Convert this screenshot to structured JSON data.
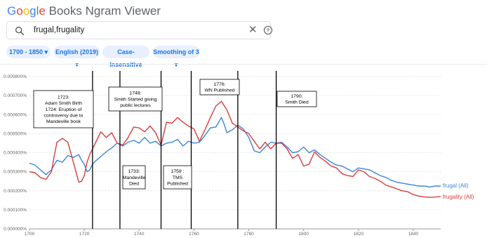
{
  "app": {
    "brand_google": "Google",
    "brand_rest": " Books Ngram Viewer",
    "brand_colors": [
      "#4285F4",
      "#EA4335",
      "#FBBC05",
      "#4285F4",
      "#34A853",
      "#EA4335"
    ]
  },
  "search": {
    "query": "frugal,frugality",
    "clear_icon": "close-icon",
    "help_icon": "help-circle-icon"
  },
  "filters": {
    "year_range": "1700 - 1850",
    "corpus": "English (2019)",
    "case": "Case-Insensitive",
    "smoothing": "Smoothing of 3",
    "accent": "#1a73e8",
    "chip_bg": "#e8f0fe"
  },
  "chart_data": {
    "type": "line",
    "xlim": [
      1700,
      1850
    ],
    "ylim": [
      0,
      8e-06
    ],
    "x_ticks": [
      "1700",
      "1720",
      "1740",
      "1760",
      "1780",
      "1800",
      "1820",
      "1840"
    ],
    "y_ticks": [
      "0.000000%",
      "0.000100%",
      "0.000200%",
      "0.000300%",
      "0.000400%",
      "0.000500%",
      "0.000600%",
      "0.000700%",
      "0.000800%"
    ],
    "grid": true,
    "legend_placement": "right",
    "series": [
      {
        "name": "frugal (All)",
        "color": "#3f84d6",
        "points": [
          [
            1700,
            3.45
          ],
          [
            1702,
            3.35
          ],
          [
            1704,
            3.1
          ],
          [
            1706,
            2.85
          ],
          [
            1708,
            3.1
          ],
          [
            1710,
            3.6
          ],
          [
            1712,
            3.5
          ],
          [
            1714,
            3.85
          ],
          [
            1716,
            3.75
          ],
          [
            1718,
            3.9
          ],
          [
            1719,
            3.6
          ],
          [
            1720,
            3.4
          ],
          [
            1721,
            3.0
          ],
          [
            1722,
            3.1
          ],
          [
            1723,
            3.4
          ],
          [
            1724,
            3.55
          ],
          [
            1726,
            3.8
          ],
          [
            1728,
            4.05
          ],
          [
            1730,
            4.25
          ],
          [
            1732,
            4.5
          ],
          [
            1734,
            4.35
          ],
          [
            1736,
            4.55
          ],
          [
            1738,
            4.65
          ],
          [
            1740,
            4.5
          ],
          [
            1742,
            4.8
          ],
          [
            1744,
            4.5
          ],
          [
            1746,
            4.6
          ],
          [
            1748,
            4.35
          ],
          [
            1750,
            4.5
          ],
          [
            1752,
            4.55
          ],
          [
            1754,
            4.7
          ],
          [
            1756,
            4.35
          ],
          [
            1758,
            4.6
          ],
          [
            1760,
            4.5
          ],
          [
            1762,
            4.55
          ],
          [
            1764,
            4.9
          ],
          [
            1766,
            5.3
          ],
          [
            1768,
            5.35
          ],
          [
            1770,
            5.85
          ],
          [
            1771,
            5.5
          ],
          [
            1772,
            5.05
          ],
          [
            1774,
            5.2
          ],
          [
            1776,
            5.45
          ],
          [
            1778,
            5.25
          ],
          [
            1780,
            4.8
          ],
          [
            1782,
            4.1
          ],
          [
            1784,
            4.0
          ],
          [
            1786,
            4.3
          ],
          [
            1788,
            4.55
          ],
          [
            1790,
            4.5
          ],
          [
            1792,
            4.55
          ],
          [
            1794,
            4.3
          ],
          [
            1796,
            4.0
          ],
          [
            1798,
            4.05
          ],
          [
            1800,
            4.3
          ],
          [
            1802,
            4.0
          ],
          [
            1804,
            4.15
          ],
          [
            1806,
            3.9
          ],
          [
            1808,
            3.7
          ],
          [
            1810,
            3.5
          ],
          [
            1812,
            3.35
          ],
          [
            1814,
            3.3
          ],
          [
            1816,
            3.15
          ],
          [
            1818,
            3.0
          ],
          [
            1820,
            3.2
          ],
          [
            1822,
            3.15
          ],
          [
            1824,
            3.1
          ],
          [
            1826,
            2.95
          ],
          [
            1828,
            2.8
          ],
          [
            1830,
            2.7
          ],
          [
            1832,
            2.55
          ],
          [
            1834,
            2.45
          ],
          [
            1836,
            2.4
          ],
          [
            1838,
            2.35
          ],
          [
            1840,
            2.3
          ],
          [
            1842,
            2.25
          ],
          [
            1844,
            2.25
          ],
          [
            1846,
            2.2
          ],
          [
            1848,
            2.25
          ],
          [
            1850,
            2.25
          ]
        ]
      },
      {
        "name": "frugality (All)",
        "color": "#db3b3b",
        "points": [
          [
            1700,
            3.0
          ],
          [
            1702,
            2.95
          ],
          [
            1704,
            2.7
          ],
          [
            1706,
            2.6
          ],
          [
            1708,
            3.0
          ],
          [
            1709,
            3.8
          ],
          [
            1710,
            4.55
          ],
          [
            1712,
            4.75
          ],
          [
            1714,
            4.55
          ],
          [
            1716,
            3.5
          ],
          [
            1718,
            2.45
          ],
          [
            1719,
            2.5
          ],
          [
            1720,
            2.8
          ],
          [
            1721,
            3.5
          ],
          [
            1722,
            3.9
          ],
          [
            1724,
            4.5
          ],
          [
            1726,
            5.1
          ],
          [
            1728,
            4.8
          ],
          [
            1730,
            5.05
          ],
          [
            1732,
            4.5
          ],
          [
            1734,
            4.4
          ],
          [
            1736,
            4.8
          ],
          [
            1738,
            5.35
          ],
          [
            1740,
            5.3
          ],
          [
            1742,
            5.1
          ],
          [
            1744,
            5.4
          ],
          [
            1746,
            5.05
          ],
          [
            1748,
            4.4
          ],
          [
            1750,
            5.6
          ],
          [
            1752,
            5.55
          ],
          [
            1754,
            5.85
          ],
          [
            1756,
            5.6
          ],
          [
            1758,
            5.4
          ],
          [
            1760,
            5.25
          ],
          [
            1762,
            4.6
          ],
          [
            1764,
            5.2
          ],
          [
            1766,
            5.85
          ],
          [
            1768,
            6.45
          ],
          [
            1770,
            6.7
          ],
          [
            1772,
            6.25
          ],
          [
            1774,
            5.55
          ],
          [
            1776,
            5.35
          ],
          [
            1778,
            5.15
          ],
          [
            1780,
            5.0
          ],
          [
            1782,
            4.6
          ],
          [
            1784,
            4.2
          ],
          [
            1786,
            4.55
          ],
          [
            1788,
            4.2
          ],
          [
            1790,
            4.5
          ],
          [
            1792,
            4.5
          ],
          [
            1794,
            4.2
          ],
          [
            1796,
            3.7
          ],
          [
            1798,
            3.9
          ],
          [
            1800,
            3.3
          ],
          [
            1802,
            3.4
          ],
          [
            1804,
            4.05
          ],
          [
            1806,
            3.75
          ],
          [
            1808,
            3.55
          ],
          [
            1810,
            3.3
          ],
          [
            1812,
            3.2
          ],
          [
            1814,
            2.9
          ],
          [
            1816,
            2.8
          ],
          [
            1818,
            2.75
          ],
          [
            1820,
            3.1
          ],
          [
            1822,
            3.0
          ],
          [
            1824,
            2.75
          ],
          [
            1826,
            2.65
          ],
          [
            1828,
            2.5
          ],
          [
            1830,
            2.3
          ],
          [
            1832,
            2.2
          ],
          [
            1834,
            2.1
          ],
          [
            1836,
            2.0
          ],
          [
            1838,
            1.95
          ],
          [
            1840,
            1.8
          ],
          [
            1842,
            1.72
          ],
          [
            1844,
            1.68
          ],
          [
            1846,
            1.65
          ],
          [
            1848,
            1.67
          ],
          [
            1850,
            1.7
          ]
        ]
      }
    ],
    "y_unit_multiplier": 1e-06,
    "event_lines": [
      1723,
      1733,
      1748,
      1759,
      1776,
      1790
    ],
    "annotations": [
      {
        "id": "ann-1723",
        "lines": [
          "1723:",
          "Adam Smith Birth",
          "1724: Eruption of",
          "controversy due to",
          "Mandeville book"
        ]
      },
      {
        "id": "ann-1748",
        "lines": [
          "1748:",
          "Smith Started giving",
          "public lectures"
        ]
      },
      {
        "id": "ann-1776",
        "lines": [
          "1776:",
          "WN Published"
        ]
      },
      {
        "id": "ann-1790",
        "lines": [
          "1790:",
          "Smith Died"
        ]
      },
      {
        "id": "ann-1733",
        "lines": [
          "1733:",
          "Mandeville",
          "Died"
        ]
      },
      {
        "id": "ann-1759",
        "lines": [
          "1759 :",
          "TMS",
          "Published"
        ]
      }
    ]
  }
}
